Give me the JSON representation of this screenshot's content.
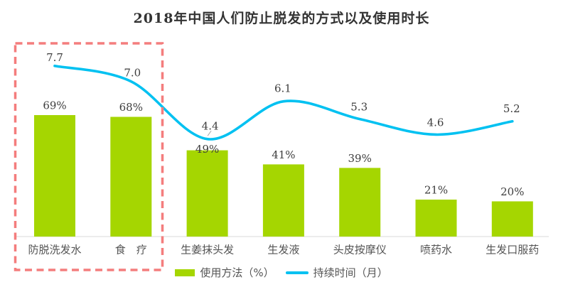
{
  "chart_data": {
    "type": "combo-bar-line",
    "title": "2018年中国人们防止脱发的方式以及使用时长",
    "categories": [
      "防脱洗发水",
      "食　疗",
      "生姜抹头发",
      "生发液",
      "头皮按摩仪",
      "喷药水",
      "生发口服药"
    ],
    "series": [
      {
        "name": "使用方法（%）",
        "type": "bar",
        "unit": "%",
        "color": "#a5d601",
        "values": [
          69,
          68,
          49,
          41,
          39,
          21,
          20
        ],
        "labels": [
          "69%",
          "68%",
          "49%",
          "41%",
          "39%",
          "21%",
          "20%"
        ]
      },
      {
        "name": "持续时间（月）",
        "type": "line",
        "unit": "月",
        "color": "#00c1f1",
        "values": [
          7.7,
          7.0,
          4.4,
          6.1,
          5.3,
          4.6,
          5.2
        ],
        "labels": [
          "7.7",
          "7.0",
          "4.4",
          "6.1",
          "5.3",
          "4.6",
          "5.2"
        ]
      }
    ],
    "legend_position": "bottom",
    "axes": {
      "x_axis_visible": true,
      "y_axis_visible": false,
      "grid": false
    },
    "highlight": {
      "type": "dashed-box",
      "color": "#f47d7d",
      "category_indexes": [
        0,
        1
      ],
      "highlighted_categories": [
        "防脱洗发水",
        "食　疗"
      ]
    }
  },
  "colors": {
    "bar": "#a5d601",
    "line": "#00c1f1",
    "highlight": "#f47d7d",
    "value_text": "#3d3d3d",
    "category_text": "#555555",
    "baseline": "#ececec",
    "title_text": "#333333",
    "background": "#ffffff"
  }
}
